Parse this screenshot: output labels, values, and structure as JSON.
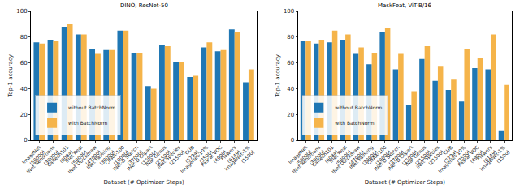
{
  "chart_data": [
    {
      "type": "bar",
      "title": "DINO, ResNet-50",
      "x_label": "Dataset (# Optimizer Steps)",
      "y_label": "Top-1 accuracy",
      "categories": [
        "ImageNet (50000)",
        "INet Renditions (30000)",
        "Caltech101 (6084)",
        "INet Real (50000)",
        "INet Quickdraw (47000)",
        "INet Painting (30000)",
        "CIFAR-100 (10000)",
        "INet-D Sketch (37000)",
        "INet-D Clipart (15000)",
        "iNat Genus (21500)",
        "iNat Species (21500)",
        "CUB (5794)",
        "ImageNet-10% (3500)",
        "Pascal VOC (4900)",
        "Flowers (6149)",
        "ImageNet-1% (1500)"
      ],
      "series": [
        {
          "name": "without BatchNorm",
          "color": "#1f77b4",
          "values": [
            76,
            78,
            88,
            82,
            71,
            70,
            85,
            68,
            42,
            74,
            61,
            49,
            72,
            69,
            86,
            45
          ]
        },
        {
          "name": "with BatchNorm",
          "color": "#f5b44a",
          "values": [
            75,
            77,
            90,
            82,
            67,
            70,
            85,
            68,
            40,
            73,
            61,
            50,
            76,
            70,
            84,
            55
          ]
        }
      ],
      "ylim": [
        0,
        100
      ],
      "yticks": [
        0,
        20,
        40,
        60,
        80,
        100
      ],
      "legend": "lower left"
    },
    {
      "type": "bar",
      "title": "MaskFeat, ViT-B/16",
      "x_label": "Dataset (# Optimizer Steps)",
      "y_label": "Top-1 accuracy",
      "categories": [
        "ImageNet (50000)",
        "INet Renditions (30000)",
        "Caltech101 (6084)",
        "INet Real (50000)",
        "INet Quickdraw (47000)",
        "INet Painting (30000)",
        "CIFAR-100 (10000)",
        "INet-D Sketch (37000)",
        "INet-D Clipart (15000)",
        "iNat Genus (21500)",
        "iNat Species (21500)",
        "CUB (5794)",
        "ImageNet-10% (3500)",
        "Pascal VOC (4900)",
        "Flowers (6149)",
        "ImageNet-1% (1500)"
      ],
      "series": [
        {
          "name": "without BatchNorm",
          "color": "#1f77b4",
          "values": [
            77,
            75,
            76,
            78,
            67,
            59,
            84,
            55,
            27,
            63,
            46,
            39,
            30,
            56,
            55,
            7
          ]
        },
        {
          "name": "with BatchNorm",
          "color": "#f5b44a",
          "values": [
            77,
            78,
            85,
            82,
            72,
            68,
            87,
            67,
            38,
            73,
            57,
            47,
            71,
            64,
            82,
            43
          ]
        }
      ],
      "ylim": [
        0,
        100
      ],
      "yticks": [
        0,
        20,
        40,
        60,
        80,
        100
      ],
      "legend": "lower left"
    }
  ]
}
